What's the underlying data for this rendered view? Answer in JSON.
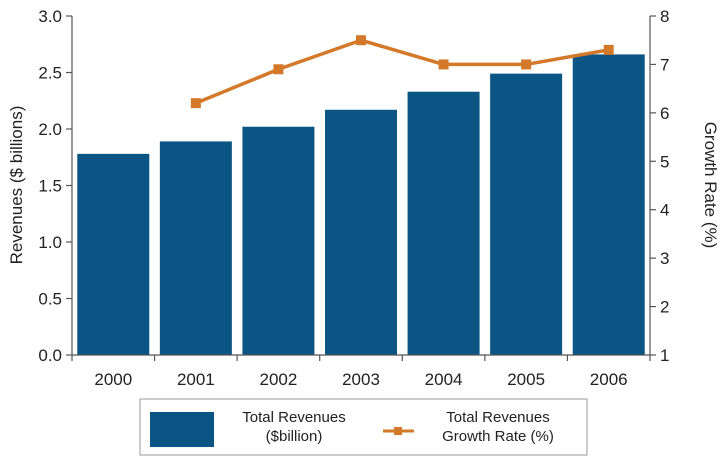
{
  "chart_data": {
    "type": "bar",
    "categories": [
      "2000",
      "2001",
      "2002",
      "2003",
      "2004",
      "2005",
      "2006"
    ],
    "series": [
      {
        "name": "Total Revenues ($billion)",
        "legend_lines": [
          "Total Revenues",
          "($billion)"
        ],
        "type": "bar",
        "axis": "left",
        "color": "#0b5584",
        "values": [
          1.78,
          1.89,
          2.02,
          2.17,
          2.33,
          2.49,
          2.66
        ]
      },
      {
        "name": "Total Revenues Growth Rate (%)",
        "legend_lines": [
          "Total Revenues",
          "Growth Rate (%)"
        ],
        "type": "line",
        "axis": "right",
        "color": "#d4782a",
        "values": [
          null,
          6.2,
          6.9,
          7.5,
          7.0,
          7.0,
          7.3
        ]
      }
    ],
    "ylabel": "Revenues ($ billions)",
    "y2label": "Growth Rate (%)",
    "ylim": [
      0,
      3.0
    ],
    "yticks": [
      "0.0",
      "0.5",
      "1.0",
      "1.5",
      "2.0",
      "2.5",
      "3.0"
    ],
    "y2lim": [
      1,
      8
    ],
    "y2ticks": [
      "1",
      "2",
      "3",
      "4",
      "5",
      "6",
      "7",
      "8"
    ],
    "grid": false,
    "legend_position": "bottom-center"
  }
}
